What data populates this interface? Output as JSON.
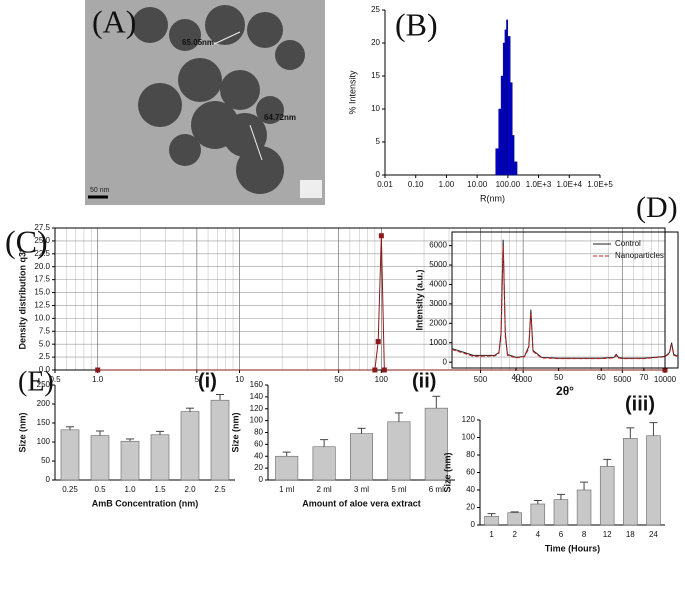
{
  "chart_data": [
    {
      "type": "image",
      "label": "(A)",
      "annotations": [
        "65.05nm",
        "64.72nm"
      ],
      "scale_bar": "50 nm"
    },
    {
      "type": "histogram",
      "label": "(B)",
      "x_label": "R(nm)",
      "y_label": "% Intensity",
      "log_x": true,
      "color": "#0000cc",
      "bins": [
        40,
        50,
        60,
        70,
        80,
        90,
        100,
        120,
        140,
        160,
        200
      ],
      "counts": [
        4,
        10,
        15,
        20,
        22,
        23.5,
        21,
        14,
        6,
        2
      ],
      "xlim": [
        0.01,
        100000
      ],
      "xticks": [
        0.01,
        {
          "value": 0.1,
          "label": "0.10"
        },
        {
          "value": 1,
          "label": "1.00"
        },
        {
          "value": 10,
          "label": "10.00"
        },
        {
          "value": 100,
          "label": "100.00"
        },
        {
          "value": 1000,
          "label": "1.0E+3"
        },
        {
          "value": 10000,
          "label": "1.0E+4"
        },
        {
          "value": 100000,
          "label": "1.0E+5"
        }
      ],
      "ylim": [
        0,
        25
      ],
      "yticks": [
        0,
        5,
        10,
        15,
        20,
        25
      ]
    },
    {
      "type": "line",
      "label": "(C)",
      "y_label": "Density distribution q3*",
      "log_x": true,
      "grid": true,
      "markers": true,
      "x": [
        1,
        90,
        95,
        100,
        105,
        10000
      ],
      "series": [
        {
          "color": "#8b1a1a",
          "values": [
            0,
            0,
            5.5,
            26,
            0,
            0
          ]
        }
      ],
      "xlim": [
        0.5,
        10000
      ],
      "xticks": [
        0.5,
        {
          "value": 1,
          "label": "1.0"
        },
        5,
        10,
        50,
        100,
        500,
        1000,
        5000,
        10000
      ],
      "ylim": [
        0,
        27.5
      ],
      "yticks": [
        {
          "value": 0,
          "label": "0.0"
        },
        2.5,
        {
          "value": 5,
          "label": "5.0"
        },
        7.5,
        {
          "value": 10,
          "label": "10.0"
        },
        12.5,
        {
          "value": 15,
          "label": "15.0"
        },
        17.5,
        {
          "value": 20,
          "label": "20.0"
        },
        22.5,
        {
          "value": 25,
          "label": "25.0"
        },
        27.5
      ]
    },
    {
      "type": "line",
      "label": "(D)",
      "x_label": "2θ°",
      "y_label": "Intensity (a.u.)",
      "legend": "upper right",
      "x": [
        25,
        30,
        35,
        36,
        36.5,
        37,
        37.5,
        38,
        40,
        42,
        43,
        43.5,
        44,
        46,
        50,
        55,
        60,
        63,
        63.5,
        64,
        65,
        70,
        75,
        76,
        76.5,
        77,
        78
      ],
      "series": [
        {
          "name": "Control",
          "color": "#222222",
          "values": [
            700,
            350,
            350,
            500,
            1500,
            6300,
            1500,
            400,
            250,
            300,
            800,
            2700,
            600,
            250,
            200,
            200,
            200,
            250,
            400,
            250,
            200,
            200,
            300,
            500,
            1000,
            400,
            300
          ]
        },
        {
          "name": "Nanoparticles",
          "color": "#cc2222",
          "values": [
            650,
            300,
            320,
            450,
            1300,
            6000,
            1300,
            350,
            220,
            280,
            700,
            2500,
            550,
            220,
            180,
            180,
            180,
            220,
            350,
            220,
            180,
            180,
            280,
            450,
            900,
            350,
            280
          ]
        }
      ],
      "xlim": [
        25,
        78
      ],
      "xticks": [
        40,
        50,
        60,
        70
      ],
      "ylim": [
        -300,
        6700
      ],
      "yticks": [
        0,
        1000,
        2000,
        3000,
        4000,
        5000,
        6000
      ]
    },
    {
      "type": "bar",
      "label": "(E)",
      "tag": "(i)",
      "x_label": "AmB Concentration (nm)",
      "y_label": "Size (nm)",
      "color": "#c8c8c8",
      "categories": [
        "0.25",
        "0.5",
        "1.0",
        "1.5",
        "2.0",
        "2.5"
      ],
      "values": [
        132,
        117,
        102,
        119,
        180,
        210
      ],
      "errors": [
        8,
        12,
        6,
        9,
        9,
        15
      ],
      "ylim": [
        0,
        250
      ],
      "yticks": [
        0,
        50,
        100,
        150,
        200,
        250
      ]
    },
    {
      "type": "bar",
      "tag": "(ii)",
      "x_label": "Amount of aloe vera extract",
      "y_label": "Size (nm)",
      "color": "#c8c8c8",
      "categories": [
        "1 ml",
        "2 ml",
        "3 ml",
        "5 ml",
        "6 ml"
      ],
      "values": [
        40,
        56,
        78,
        98,
        121
      ],
      "errors": [
        7,
        12,
        9,
        15,
        20
      ],
      "ylim": [
        0,
        160
      ],
      "yticks": [
        0,
        20,
        40,
        60,
        80,
        100,
        120,
        140,
        160
      ]
    },
    {
      "type": "bar",
      "tag": "(iii)",
      "x_label": "Time (Hours)",
      "y_label": "Size (nm)",
      "color": "#c8c8c8",
      "categories": [
        "1",
        "2",
        "4",
        "6",
        "8",
        "12",
        "18",
        "24"
      ],
      "values": [
        10,
        14,
        24,
        29,
        40,
        67,
        99,
        102
      ],
      "errors": [
        3,
        1,
        4,
        6,
        9,
        8,
        12,
        15
      ],
      "ylim": [
        0,
        120
      ],
      "yticks": [
        0,
        20,
        40,
        60,
        80,
        100,
        120
      ]
    }
  ]
}
